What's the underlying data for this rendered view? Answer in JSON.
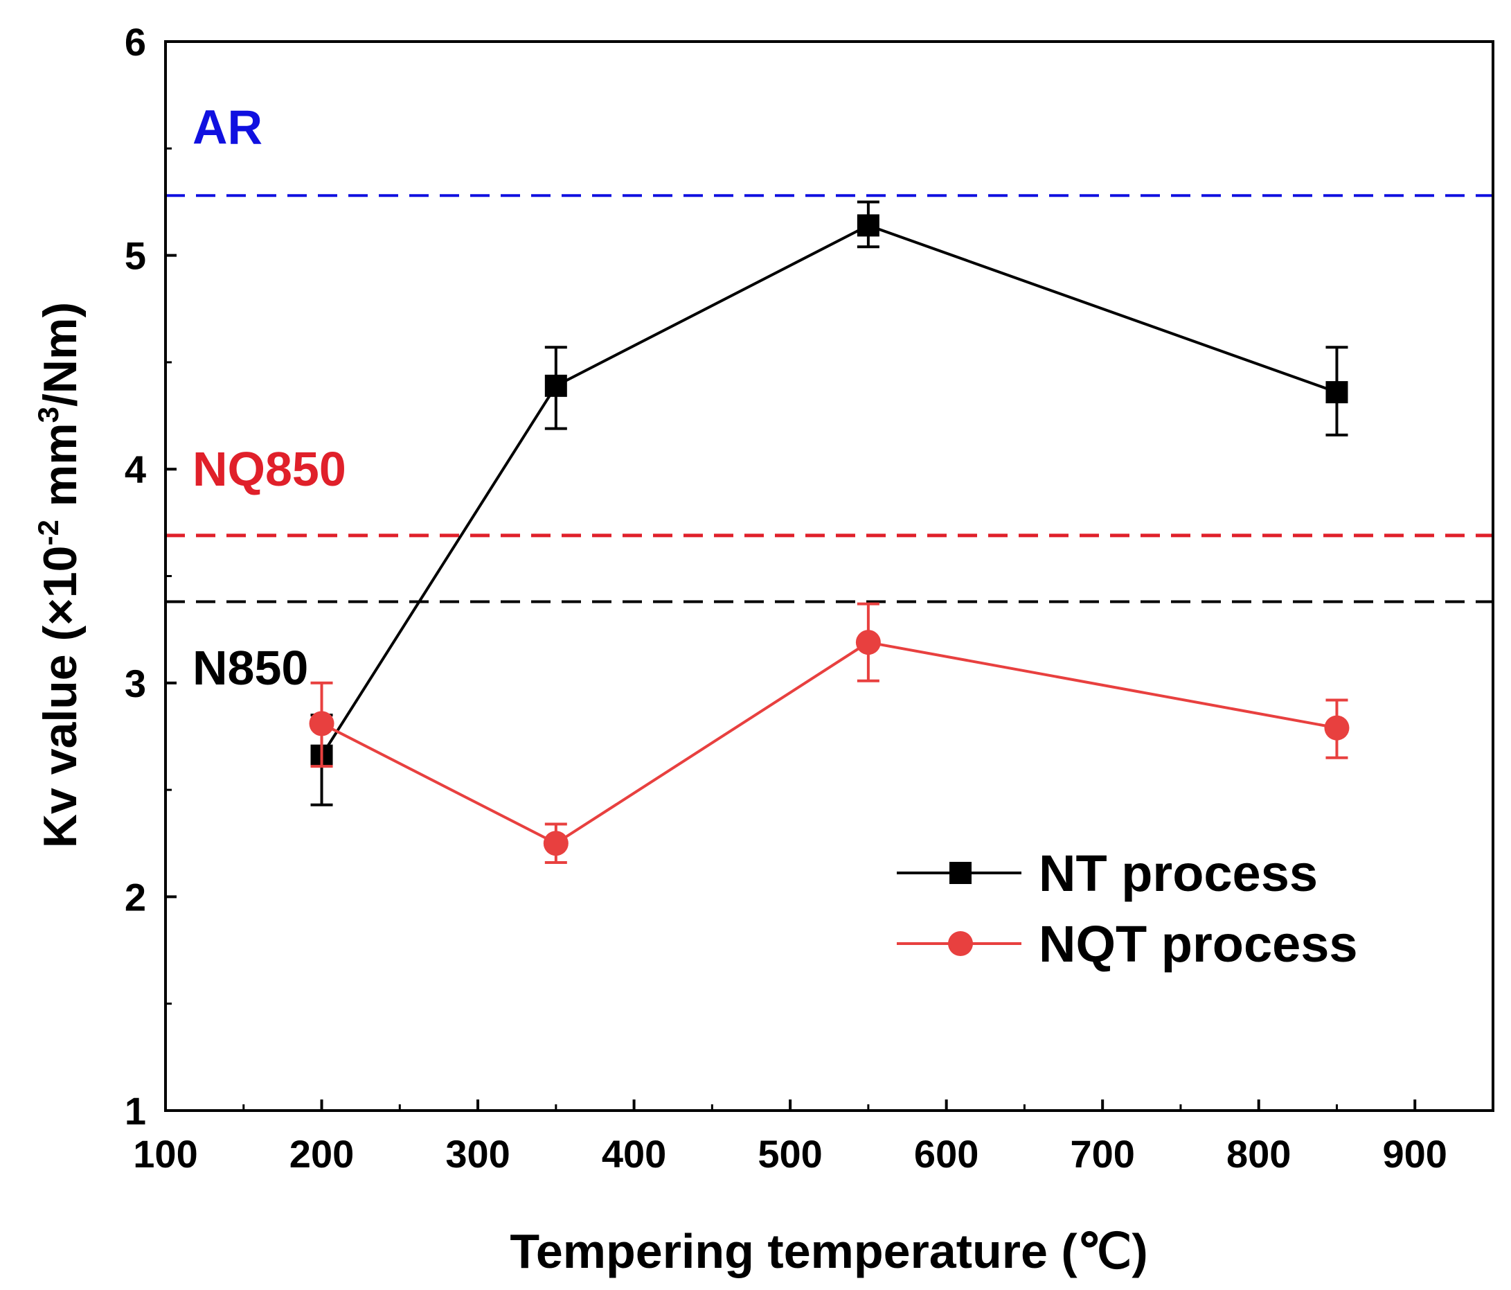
{
  "chart_data": {
    "type": "line",
    "title": "",
    "xlabel": "Tempering temperature (℃)",
    "ylabel": "Kv value (×10",
    "ylabel_sup1": "-2",
    "ylabel_mid": " mm",
    "ylabel_sup2": "3",
    "ylabel_end": "/Nm)",
    "xlim": [
      100,
      950
    ],
    "ylim": [
      1,
      6
    ],
    "xticks": [
      "100",
      "200",
      "300",
      "400",
      "500",
      "600",
      "700",
      "800",
      "900"
    ],
    "yticks": [
      "1",
      "2",
      "3",
      "4",
      "5",
      "6"
    ],
    "grid": false,
    "legend_position": "bottom-right",
    "series": [
      {
        "name": "NT process",
        "color": "#000000",
        "marker": "square",
        "x": [
          200,
          350,
          550,
          850
        ],
        "y": [
          2.66,
          4.39,
          5.14,
          4.36
        ],
        "err_low": [
          2.43,
          4.19,
          5.04,
          4.16
        ],
        "err_high": [
          2.85,
          4.57,
          5.25,
          4.57
        ]
      },
      {
        "name": "NQT process",
        "color": "#e8403f",
        "marker": "circle",
        "x": [
          200,
          350,
          550,
          850
        ],
        "y": [
          2.81,
          2.25,
          3.19,
          2.79
        ],
        "err_low": [
          2.61,
          2.16,
          3.01,
          2.65
        ],
        "err_high": [
          3.0,
          2.34,
          3.37,
          2.92
        ]
      }
    ],
    "reference_lines": [
      {
        "label": "AR",
        "y": 5.28,
        "color": "#1010e0",
        "label_y": 5.6
      },
      {
        "label": "NQ850",
        "y": 3.69,
        "color": "#e0202a",
        "label_y": 4.0
      },
      {
        "label": "N850",
        "y": 3.38,
        "color": "#000000",
        "label_y": 3.07
      }
    ]
  }
}
